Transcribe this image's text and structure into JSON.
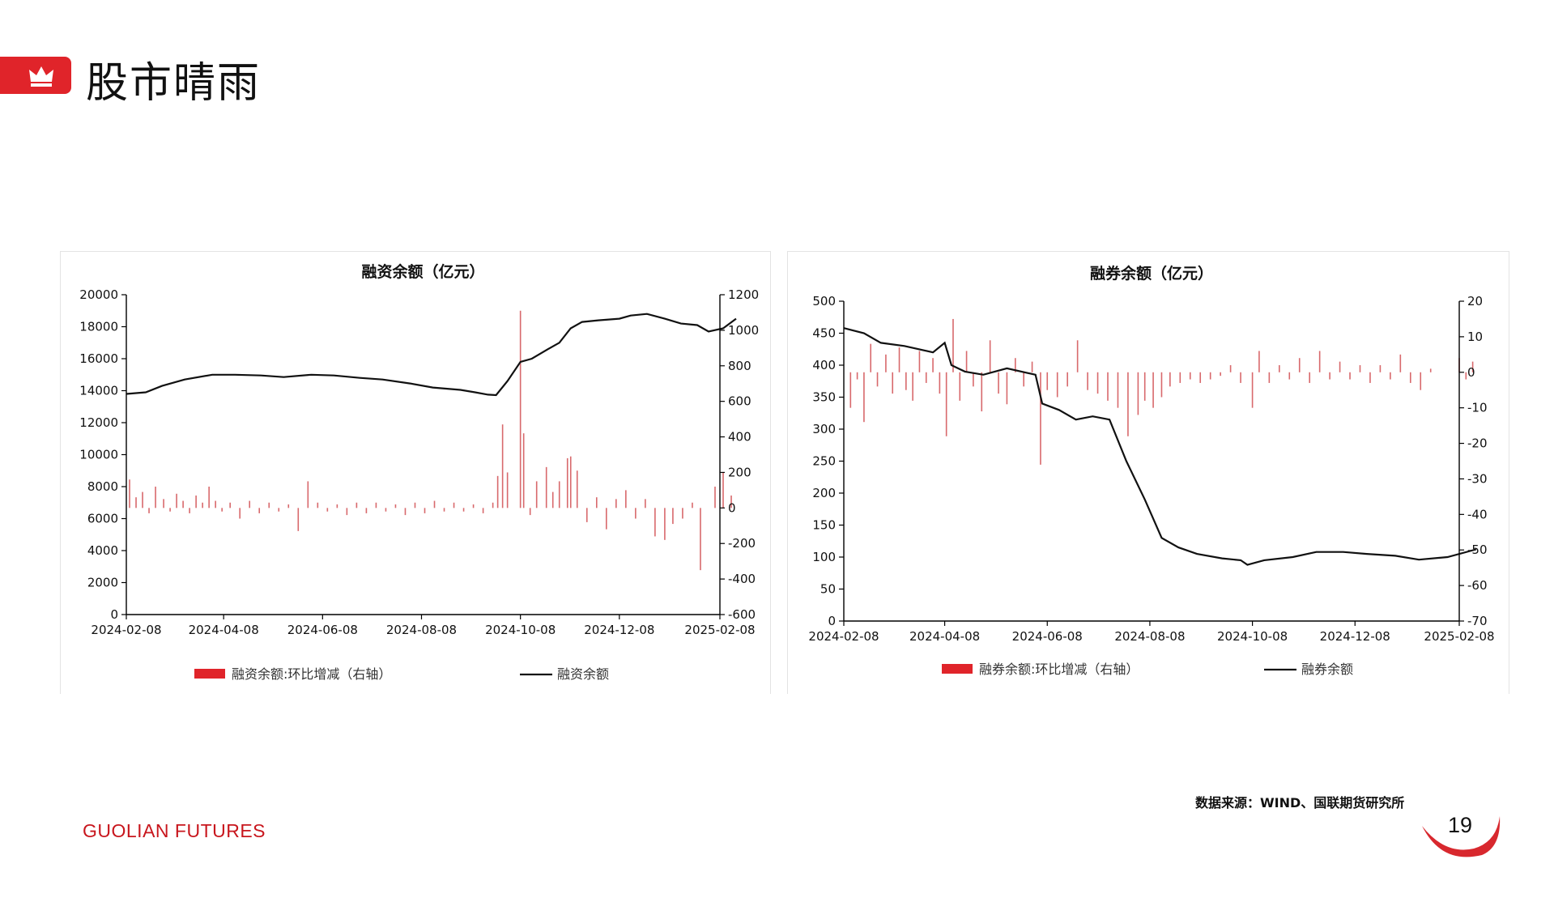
{
  "page": {
    "title": "股市晴雨",
    "source": "数据来源：WIND、国联期货研究所",
    "brand": "GUOLIAN FUTURES",
    "page_number": "19"
  },
  "icons": {
    "header": "crown-icon"
  },
  "colors": {
    "accent": "#e0242a",
    "bar": "#d8696c",
    "line": "#111111"
  },
  "chart_data": [
    {
      "type": "bar+line",
      "title": "融资余额（亿元）",
      "x_ticks": [
        "2024-02-08",
        "2024-04-08",
        "2024-06-08",
        "2024-08-08",
        "2024-10-08",
        "2024-12-08",
        "2025-02-08"
      ],
      "y_left": {
        "min": 0,
        "max": 20000,
        "ticks": [
          "0",
          "2000",
          "4000",
          "6000",
          "8000",
          "10000",
          "12000",
          "14000",
          "16000",
          "18000",
          "20000"
        ]
      },
      "y_right": {
        "min": -600,
        "max": 1200,
        "ticks": [
          "-600",
          "-400",
          "-200",
          "0",
          "200",
          "400",
          "600",
          "800",
          "1000",
          "1200"
        ]
      },
      "legend": {
        "bar": "融资余额:环比增减（右轴）",
        "line": "融资余额"
      },
      "line_points": [
        [
          "2024-02-08",
          13800
        ],
        [
          "2024-02-20",
          13900
        ],
        [
          "2024-03-01",
          14300
        ],
        [
          "2024-03-15",
          14700
        ],
        [
          "2024-04-01",
          15000
        ],
        [
          "2024-04-15",
          15000
        ],
        [
          "2024-05-01",
          14950
        ],
        [
          "2024-05-15",
          14850
        ],
        [
          "2024-06-01",
          15000
        ],
        [
          "2024-06-15",
          14950
        ],
        [
          "2024-07-01",
          14800
        ],
        [
          "2024-07-15",
          14700
        ],
        [
          "2024-08-01",
          14450
        ],
        [
          "2024-08-15",
          14200
        ],
        [
          "2024-09-01",
          14050
        ],
        [
          "2024-09-10",
          13900
        ],
        [
          "2024-09-18",
          13750
        ],
        [
          "2024-09-23",
          13720
        ],
        [
          "2024-09-30",
          14600
        ],
        [
          "2024-10-08",
          15800
        ],
        [
          "2024-10-15",
          16000
        ],
        [
          "2024-10-25",
          16600
        ],
        [
          "2024-11-01",
          17000
        ],
        [
          "2024-11-08",
          17900
        ],
        [
          "2024-11-15",
          18300
        ],
        [
          "2024-11-25",
          18400
        ],
        [
          "2024-12-08",
          18500
        ],
        [
          "2024-12-15",
          18700
        ],
        [
          "2024-12-25",
          18800
        ],
        [
          "2025-01-05",
          18500
        ],
        [
          "2025-01-15",
          18200
        ],
        [
          "2025-01-25",
          18100
        ],
        [
          "2025-02-01",
          17700
        ],
        [
          "2025-02-10",
          17900
        ],
        [
          "2025-02-18",
          18500
        ]
      ],
      "bar_points": [
        [
          "2024-02-10",
          160
        ],
        [
          "2024-02-14",
          60
        ],
        [
          "2024-02-18",
          90
        ],
        [
          "2024-02-22",
          -30
        ],
        [
          "2024-02-26",
          120
        ],
        [
          "2024-03-02",
          50
        ],
        [
          "2024-03-06",
          -20
        ],
        [
          "2024-03-10",
          80
        ],
        [
          "2024-03-14",
          40
        ],
        [
          "2024-03-18",
          -30
        ],
        [
          "2024-03-22",
          70
        ],
        [
          "2024-03-26",
          30
        ],
        [
          "2024-03-30",
          120
        ],
        [
          "2024-04-03",
          40
        ],
        [
          "2024-04-07",
          -20
        ],
        [
          "2024-04-12",
          30
        ],
        [
          "2024-04-18",
          -60
        ],
        [
          "2024-04-24",
          40
        ],
        [
          "2024-04-30",
          -30
        ],
        [
          "2024-05-06",
          30
        ],
        [
          "2024-05-12",
          -20
        ],
        [
          "2024-05-18",
          20
        ],
        [
          "2024-05-24",
          -130
        ],
        [
          "2024-05-30",
          150
        ],
        [
          "2024-06-05",
          30
        ],
        [
          "2024-06-11",
          -20
        ],
        [
          "2024-06-17",
          20
        ],
        [
          "2024-06-23",
          -40
        ],
        [
          "2024-06-29",
          30
        ],
        [
          "2024-07-05",
          -30
        ],
        [
          "2024-07-11",
          30
        ],
        [
          "2024-07-17",
          -20
        ],
        [
          "2024-07-23",
          20
        ],
        [
          "2024-07-29",
          -40
        ],
        [
          "2024-08-04",
          30
        ],
        [
          "2024-08-10",
          -30
        ],
        [
          "2024-08-16",
          40
        ],
        [
          "2024-08-22",
          -20
        ],
        [
          "2024-08-28",
          30
        ],
        [
          "2024-09-03",
          -20
        ],
        [
          "2024-09-09",
          20
        ],
        [
          "2024-09-15",
          -30
        ],
        [
          "2024-09-21",
          30
        ],
        [
          "2024-09-24",
          180
        ],
        [
          "2024-09-27",
          470
        ],
        [
          "2024-09-30",
          200
        ],
        [
          "2024-10-08",
          1110
        ],
        [
          "2024-10-10",
          420
        ],
        [
          "2024-10-14",
          -40
        ],
        [
          "2024-10-18",
          150
        ],
        [
          "2024-10-24",
          230
        ],
        [
          "2024-10-28",
          90
        ],
        [
          "2024-11-01",
          150
        ],
        [
          "2024-11-06",
          280
        ],
        [
          "2024-11-08",
          290
        ],
        [
          "2024-11-12",
          210
        ],
        [
          "2024-11-18",
          -80
        ],
        [
          "2024-11-24",
          60
        ],
        [
          "2024-11-30",
          -120
        ],
        [
          "2024-12-06",
          50
        ],
        [
          "2024-12-12",
          100
        ],
        [
          "2024-12-18",
          -60
        ],
        [
          "2024-12-24",
          50
        ],
        [
          "2024-12-30",
          -160
        ],
        [
          "2025-01-05",
          -180
        ],
        [
          "2025-01-10",
          -90
        ],
        [
          "2025-01-16",
          -60
        ],
        [
          "2025-01-22",
          30
        ],
        [
          "2025-01-27",
          -350
        ],
        [
          "2025-02-05",
          120
        ],
        [
          "2025-02-10",
          200
        ],
        [
          "2025-02-15",
          70
        ]
      ]
    },
    {
      "type": "bar+line",
      "title": "融券余额（亿元）",
      "x_ticks": [
        "2024-02-08",
        "2024-04-08",
        "2024-06-08",
        "2024-08-08",
        "2024-10-08",
        "2024-12-08",
        "2025-02-08"
      ],
      "y_left": {
        "min": 0,
        "max": 500,
        "ticks": [
          "0",
          "50",
          "100",
          "150",
          "200",
          "250",
          "300",
          "350",
          "400",
          "450",
          "500"
        ]
      },
      "y_right": {
        "min": -70,
        "max": 20,
        "ticks": [
          "-70",
          "-60",
          "-50",
          "-40",
          "-30",
          "-20",
          "-10",
          "0",
          "10",
          "20"
        ]
      },
      "legend": {
        "bar": "融券余额:环比增减（右轴）",
        "line": "融券余额"
      },
      "line_points": [
        [
          "2024-02-08",
          458
        ],
        [
          "2024-02-20",
          450
        ],
        [
          "2024-03-01",
          435
        ],
        [
          "2024-03-15",
          430
        ],
        [
          "2024-04-01",
          420
        ],
        [
          "2024-04-08",
          435
        ],
        [
          "2024-04-12",
          400
        ],
        [
          "2024-04-20",
          390
        ],
        [
          "2024-05-01",
          385
        ],
        [
          "2024-05-15",
          395
        ],
        [
          "2024-06-01",
          385
        ],
        [
          "2024-06-05",
          340
        ],
        [
          "2024-06-15",
          330
        ],
        [
          "2024-06-25",
          315
        ],
        [
          "2024-07-05",
          320
        ],
        [
          "2024-07-15",
          315
        ],
        [
          "2024-07-25",
          250
        ],
        [
          "2024-08-05",
          190
        ],
        [
          "2024-08-15",
          130
        ],
        [
          "2024-08-25",
          115
        ],
        [
          "2024-09-05",
          105
        ],
        [
          "2024-09-20",
          98
        ],
        [
          "2024-10-01",
          95
        ],
        [
          "2024-10-05",
          88
        ],
        [
          "2024-10-15",
          95
        ],
        [
          "2024-11-01",
          100
        ],
        [
          "2024-11-15",
          108
        ],
        [
          "2024-12-01",
          108
        ],
        [
          "2024-12-15",
          105
        ],
        [
          "2025-01-01",
          102
        ],
        [
          "2025-01-15",
          96
        ],
        [
          "2025-02-01",
          100
        ],
        [
          "2025-02-18",
          112
        ]
      ],
      "bar_points": [
        [
          "2024-02-12",
          -10
        ],
        [
          "2024-02-16",
          -2
        ],
        [
          "2024-02-20",
          -14
        ],
        [
          "2024-02-24",
          8
        ],
        [
          "2024-02-28",
          -4
        ],
        [
          "2024-03-04",
          5
        ],
        [
          "2024-03-08",
          -6
        ],
        [
          "2024-03-12",
          7
        ],
        [
          "2024-03-16",
          -5
        ],
        [
          "2024-03-20",
          -8
        ],
        [
          "2024-03-24",
          6
        ],
        [
          "2024-03-28",
          -3
        ],
        [
          "2024-04-01",
          4
        ],
        [
          "2024-04-05",
          -6
        ],
        [
          "2024-04-09",
          -18
        ],
        [
          "2024-04-13",
          15
        ],
        [
          "2024-04-17",
          -8
        ],
        [
          "2024-04-21",
          6
        ],
        [
          "2024-04-25",
          -4
        ],
        [
          "2024-04-30",
          -11
        ],
        [
          "2024-05-05",
          9
        ],
        [
          "2024-05-10",
          -6
        ],
        [
          "2024-05-15",
          -9
        ],
        [
          "2024-05-20",
          4
        ],
        [
          "2024-05-25",
          -4
        ],
        [
          "2024-05-30",
          3
        ],
        [
          "2024-06-04",
          -26
        ],
        [
          "2024-06-08",
          -5
        ],
        [
          "2024-06-14",
          -7
        ],
        [
          "2024-06-20",
          -4
        ],
        [
          "2024-06-26",
          9
        ],
        [
          "2024-07-02",
          -5
        ],
        [
          "2024-07-08",
          -6
        ],
        [
          "2024-07-14",
          -8
        ],
        [
          "2024-07-20",
          -10
        ],
        [
          "2024-07-26",
          -18
        ],
        [
          "2024-08-01",
          -12
        ],
        [
          "2024-08-05",
          -8
        ],
        [
          "2024-08-10",
          -10
        ],
        [
          "2024-08-15",
          -7
        ],
        [
          "2024-08-20",
          -4
        ],
        [
          "2024-08-26",
          -3
        ],
        [
          "2024-09-01",
          -2
        ],
        [
          "2024-09-07",
          -3
        ],
        [
          "2024-09-13",
          -2
        ],
        [
          "2024-09-19",
          -1
        ],
        [
          "2024-09-25",
          2
        ],
        [
          "2024-10-01",
          -3
        ],
        [
          "2024-10-08",
          -10
        ],
        [
          "2024-10-12",
          6
        ],
        [
          "2024-10-18",
          -3
        ],
        [
          "2024-10-24",
          2
        ],
        [
          "2024-10-30",
          -2
        ],
        [
          "2024-11-05",
          4
        ],
        [
          "2024-11-11",
          -3
        ],
        [
          "2024-11-17",
          6
        ],
        [
          "2024-11-23",
          -2
        ],
        [
          "2024-11-29",
          3
        ],
        [
          "2024-12-05",
          -2
        ],
        [
          "2024-12-11",
          2
        ],
        [
          "2024-12-17",
          -3
        ],
        [
          "2024-12-23",
          2
        ],
        [
          "2024-12-29",
          -2
        ],
        [
          "2025-01-04",
          5
        ],
        [
          "2025-01-10",
          -3
        ],
        [
          "2025-01-16",
          -5
        ],
        [
          "2025-01-22",
          1
        ],
        [
          "2025-02-08",
          4
        ],
        [
          "2025-02-12",
          -2
        ],
        [
          "2025-02-16",
          3
        ]
      ]
    }
  ]
}
